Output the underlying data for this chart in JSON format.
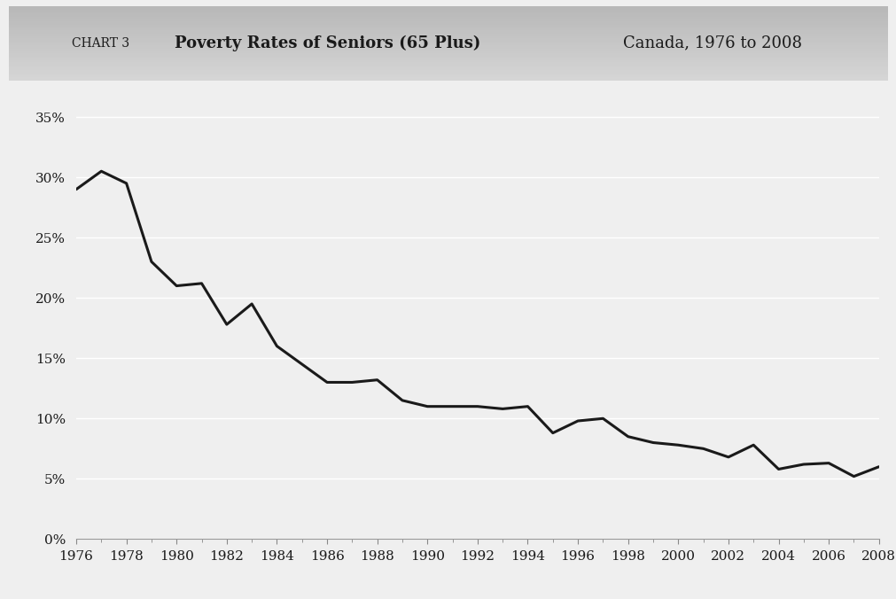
{
  "title_chart": "CHART 3",
  "title_main": "Poverty Rates of Seniors (65 Plus)",
  "title_sub": "Canada, 1976 to 2008",
  "years": [
    1976,
    1977,
    1978,
    1979,
    1980,
    1981,
    1982,
    1983,
    1984,
    1985,
    1986,
    1987,
    1988,
    1989,
    1990,
    1991,
    1992,
    1993,
    1994,
    1995,
    1996,
    1997,
    1998,
    1999,
    2000,
    2001,
    2002,
    2003,
    2004,
    2005,
    2006,
    2007,
    2008
  ],
  "values": [
    29.0,
    30.5,
    29.5,
    23.0,
    21.0,
    21.2,
    17.8,
    19.5,
    16.0,
    14.5,
    13.0,
    13.0,
    13.2,
    11.5,
    11.0,
    11.0,
    11.0,
    10.8,
    11.0,
    8.8,
    9.8,
    10.0,
    8.5,
    8.0,
    7.8,
    7.5,
    6.8,
    7.8,
    5.8,
    6.2,
    6.3,
    5.2,
    6.0
  ],
  "line_color": "#1a1a1a",
  "line_width": 2.2,
  "outer_bg": "#c8c8c8",
  "card_bg": "#efefef",
  "title_bg_top": "#c0c0c0",
  "title_bg_bot": "#d8d8d8",
  "grid_color": "#ffffff",
  "tick_label_color": "#1a1a1a",
  "ylim": [
    0,
    37
  ],
  "yticks": [
    0,
    5,
    10,
    15,
    20,
    25,
    30,
    35
  ],
  "ytick_labels": [
    "0%",
    "5%",
    "10%",
    "15%",
    "20%",
    "25%",
    "30%",
    "35%"
  ],
  "xtick_labels": [
    "1976",
    "1978",
    "1980",
    "1982",
    "1984",
    "1986",
    "1988",
    "1990",
    "1992",
    "1994",
    "1996",
    "1998",
    "2000",
    "2002",
    "2004",
    "2006",
    "2008"
  ],
  "title_fontsize": 13,
  "tick_fontsize": 11
}
